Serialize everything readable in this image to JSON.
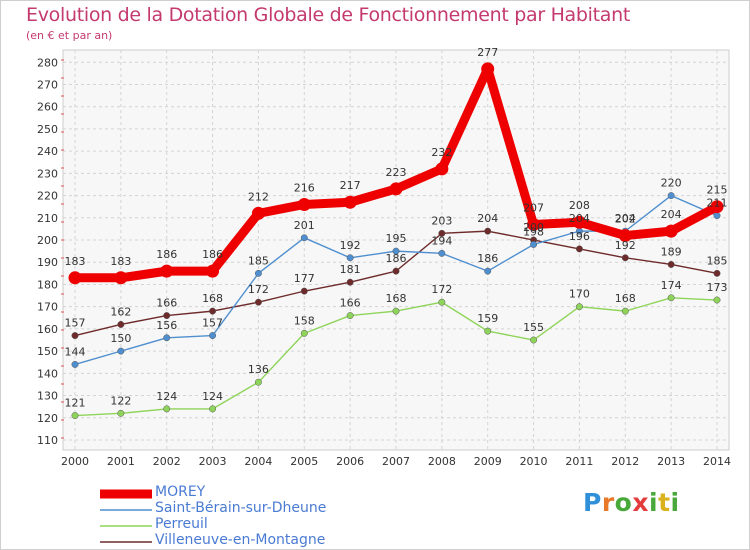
{
  "title": "Evolution de la Dotation Globale de Fonctionnement par Habitant",
  "subtitle": "(en € et par an)",
  "brand": "Proxiti",
  "brand_letters": [
    "P",
    "r",
    "o",
    "x",
    "i",
    "t",
    "i"
  ],
  "brand_colors": [
    "#2f8fd8",
    "#e8782a",
    "#49a83a",
    "#e23c3c",
    "#49a83a",
    "#d9b21d",
    "#49a83a"
  ],
  "chart_data": {
    "type": "line",
    "x": [
      2000,
      2001,
      2002,
      2003,
      2004,
      2005,
      2006,
      2007,
      2008,
      2009,
      2010,
      2011,
      2012,
      2013,
      2014
    ],
    "ylim": [
      110,
      280
    ],
    "yticks": [
      110,
      120,
      130,
      140,
      150,
      160,
      170,
      180,
      190,
      200,
      210,
      220,
      230,
      240,
      250,
      260,
      270,
      280
    ],
    "grid": true,
    "series": [
      {
        "name": "Perreuil",
        "color": "#8fd45a",
        "width": 1.4,
        "values": [
          121,
          122,
          124,
          124,
          136,
          158,
          166,
          168,
          172,
          159,
          155,
          170,
          168,
          174,
          173
        ],
        "labels": [
          "121",
          "122",
          "124",
          "124",
          "136",
          "158",
          "166",
          "168",
          "172",
          "159",
          "155",
          "170",
          "168",
          "174",
          "173"
        ]
      },
      {
        "name": "Villeneuve-en-Montagne",
        "color": "#6e2b2b",
        "width": 1.4,
        "values": [
          157,
          162,
          166,
          168,
          172,
          177,
          181,
          186,
          203,
          204,
          200,
          196,
          192,
          189,
          185
        ],
        "labels": [
          "157",
          "162",
          "166",
          "168",
          "172",
          "177",
          "181",
          "186",
          "203",
          "204",
          "200",
          "196",
          "192",
          "189",
          "185"
        ]
      },
      {
        "name": "Saint-Bérain-sur-Dheune",
        "color": "#4f8fcf",
        "width": 1.4,
        "values": [
          144,
          150,
          156,
          157,
          185,
          201,
          192,
          195,
          194,
          186,
          198,
          204,
          204,
          220,
          211
        ],
        "labels": [
          "144",
          "150",
          "156",
          "157",
          "185",
          "201",
          "192",
          "195",
          "194",
          "186",
          "198",
          "204",
          "204",
          "220",
          "211"
        ]
      },
      {
        "name": "MOREY",
        "color": "#ee0000",
        "width": 9,
        "values": [
          183,
          183,
          186,
          186,
          212,
          216,
          217,
          223,
          232,
          277,
          207,
          208,
          202,
          204,
          215
        ],
        "labels": [
          "183",
          "183",
          "186",
          "186",
          "212",
          "216",
          "217",
          "223",
          "232",
          "277",
          "207",
          "208",
          "202",
          "204",
          "215"
        ]
      }
    ],
    "legend": [
      "MOREY",
      "Saint-Bérain-sur-Dheune",
      "Perreuil",
      "Villeneuve-en-Montagne"
    ],
    "legend_position": "bottom-left"
  }
}
